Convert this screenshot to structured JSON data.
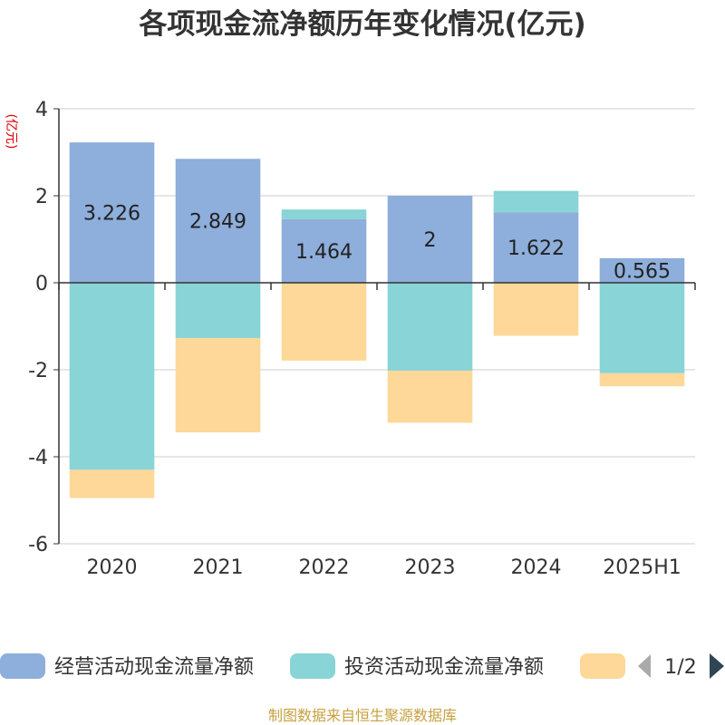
{
  "chart_data": {
    "type": "bar",
    "stacked": true,
    "title": "各项现金流净额历年变化情况(亿元)",
    "ylabel": "(亿元)",
    "xlabel": "",
    "categories": [
      "2020",
      "2021",
      "2022",
      "2023",
      "2024",
      "2025H1"
    ],
    "ylim": [
      -6,
      4
    ],
    "yticks": [
      4,
      2,
      0,
      -2,
      -4,
      -6
    ],
    "grid": true,
    "series": [
      {
        "name": "经营活动现金流量净额",
        "color": "#8eaedb",
        "values": [
          3.226,
          2.849,
          1.464,
          2,
          1.622,
          0.565
        ],
        "labels": [
          "3.226",
          "2.849",
          "1.464",
          "2",
          "1.622",
          "0.565"
        ]
      },
      {
        "name": "投资活动现金流量净额",
        "color": "#88d4d6",
        "values": [
          -4.3,
          -1.27,
          0.22,
          -2.02,
          0.49,
          -2.08
        ]
      },
      {
        "name": "",
        "color": "#fdd899",
        "values": [
          -0.65,
          -2.17,
          -1.79,
          -1.2,
          -1.22,
          -0.3
        ]
      }
    ],
    "legend": {
      "position": "bottom",
      "page": "1/2"
    },
    "source": "制图数据来自恒生聚源数据库"
  }
}
